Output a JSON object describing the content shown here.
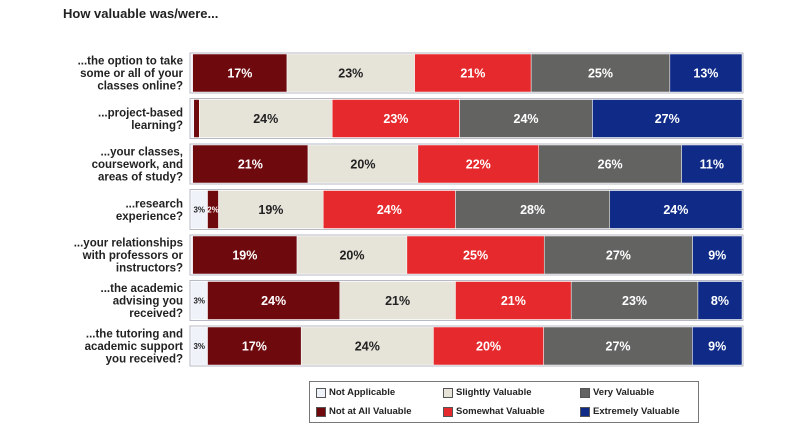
{
  "chart_data": {
    "type": "bar",
    "orientation": "horizontal-stacked-100",
    "title": "How valuable was/were...",
    "categories": [
      "...the option to take some or all of your classes online?",
      "...project-based learning?",
      "...your classes, coursework, and areas of study?",
      "...research experience?",
      "...your relationships with professors or instructors?",
      "...the academic advising you received?",
      "...the tutoring and academic support you received?"
    ],
    "category_lines": [
      [
        "...the option to take",
        "some or all of your",
        "classes online?"
      ],
      [
        "...project-based",
        "learning?"
      ],
      [
        "...your classes,",
        "coursework, and",
        "areas of study?"
      ],
      [
        "...research",
        "experience?"
      ],
      [
        "...your relationships",
        "with professors or",
        "instructors?"
      ],
      [
        "...the academic",
        "advising you",
        "received?"
      ],
      [
        "...the tutoring and",
        "academic support",
        "you received?"
      ]
    ],
    "series": [
      {
        "name": "Not Applicable",
        "color": "#f0f2fa",
        "text_color": "#222222",
        "values": [
          0.3,
          0.5,
          0.3,
          3,
          0.3,
          3,
          3
        ],
        "labels": [
          "",
          "",
          "",
          "3%",
          "",
          "3%",
          "3%"
        ]
      },
      {
        "name": "Not at All Valuable",
        "color": "#6e0a0e",
        "text_color": "#ffffff",
        "values": [
          17,
          1,
          21,
          2,
          19,
          24,
          17
        ],
        "labels": [
          "17%",
          "",
          "21%",
          "2%",
          "19%",
          "24%",
          "17%"
        ]
      },
      {
        "name": "Slightly Valuable",
        "color": "#e6e3d9",
        "text_color": "#222222",
        "values": [
          23,
          24,
          20,
          19,
          20,
          21,
          24
        ],
        "labels": [
          "23%",
          "24%",
          "20%",
          "19%",
          "20%",
          "21%",
          "24%"
        ]
      },
      {
        "name": "Somewhat Valuable",
        "color": "#e5292c",
        "text_color": "#ffffff",
        "values": [
          21,
          23,
          22,
          24,
          25,
          21,
          20
        ],
        "labels": [
          "21%",
          "23%",
          "22%",
          "24%",
          "25%",
          "21%",
          "20%"
        ]
      },
      {
        "name": "Very Valuable",
        "color": "#636362",
        "text_color": "#ffffff",
        "values": [
          25,
          24,
          26,
          28,
          27,
          23,
          27
        ],
        "labels": [
          "25%",
          "24%",
          "26%",
          "28%",
          "27%",
          "23%",
          "27%"
        ]
      },
      {
        "name": "Extremely Valuable",
        "color": "#0f2b87",
        "text_color": "#ffffff",
        "values": [
          13,
          27,
          11,
          24,
          9,
          8,
          9
        ],
        "labels": [
          "13%",
          "27%",
          "11%",
          "24%",
          "9%",
          "8%",
          "9%"
        ]
      }
    ],
    "legend": {
      "position": "bottom",
      "order": [
        "Not Applicable",
        "Slightly Valuable",
        "Very Valuable",
        "Not at All Valuable",
        "Somewhat Valuable",
        "Extremely Valuable"
      ]
    },
    "grid": false
  }
}
